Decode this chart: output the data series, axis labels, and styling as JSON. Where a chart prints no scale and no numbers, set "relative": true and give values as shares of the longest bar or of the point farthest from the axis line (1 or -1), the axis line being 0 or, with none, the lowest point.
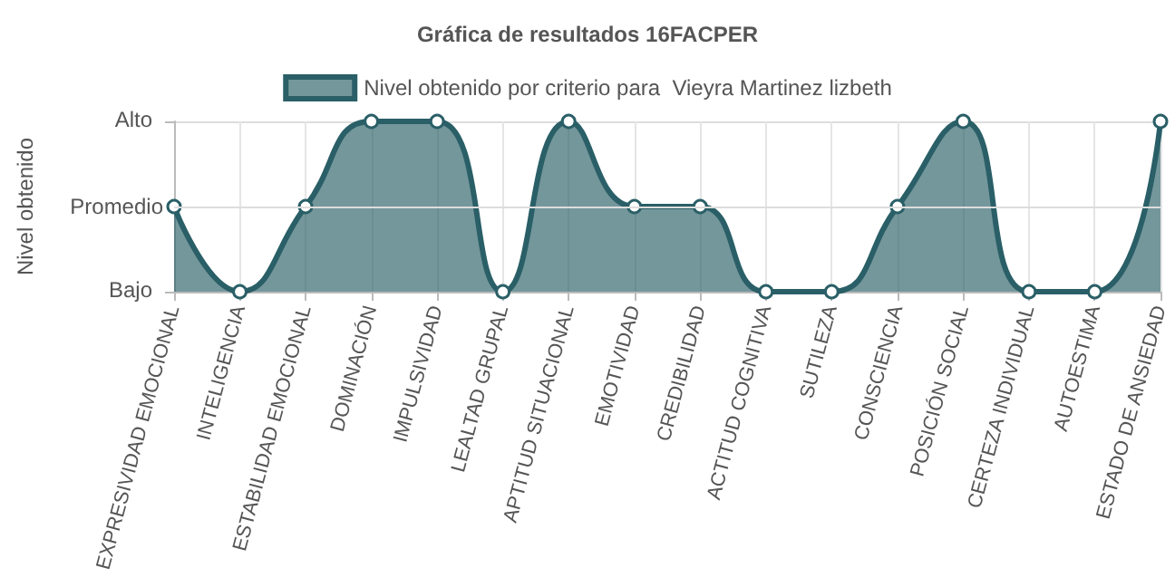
{
  "chart_data": {
    "type": "area",
    "title": "Gráfica de resultados 16FACPER",
    "ylabel": "Nivel obtenido",
    "categories": [
      "EXPRESIVIDAD EMOCIONAL",
      "INTELIGENCIA",
      "ESTABILIDAD EMOCIONAL",
      "DOMINACIÓN",
      "IMPULSIVIDAD",
      "LEALTAD GRUPAL",
      "APTITUD SITUACIONAL",
      "EMOTIVIDAD",
      "CREDIBILIDAD",
      "ACTITUD COGNITIVA",
      "SUTILEZA",
      "CONSCIENCIA",
      "POSICIÓN SOCIAL",
      "CERTEZA INDIVIDUAL",
      "AUTOESTIMA",
      "ESTADO DE ANSIEDAD"
    ],
    "series": [
      {
        "name": "Nivel obtenido por criterio para  Vieyra Martinez lizbeth",
        "color": "#2a5f67",
        "values": [
          0.5,
          0,
          0.5,
          1,
          1,
          0,
          1,
          0.5,
          0.5,
          0,
          0,
          0.5,
          1,
          0,
          0,
          1
        ]
      }
    ],
    "relative": true,
    "annotations": [
      "Bajo",
      "Alto"
    ],
    "ref_lines": [
      {
        "axis": "y",
        "value": 0.5,
        "label": "Promedio",
        "color": "#dddddd"
      }
    ],
    "grid": true,
    "legend": "top",
    "marker": "circle",
    "line_style": "solid"
  }
}
